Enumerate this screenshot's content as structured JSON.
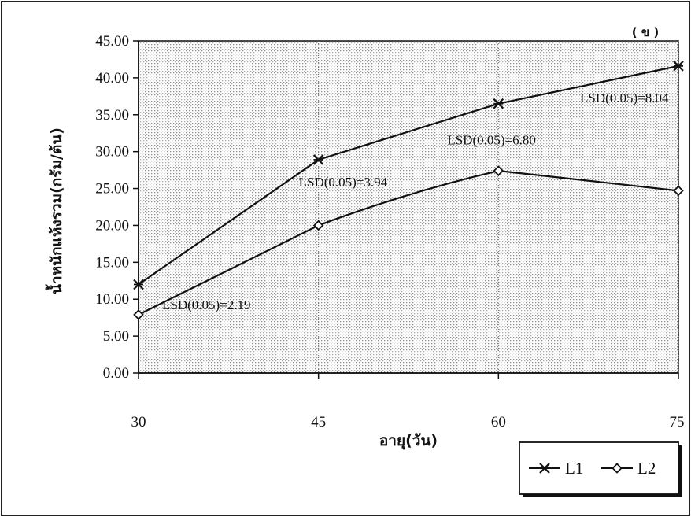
{
  "panel_tag": "( ข )",
  "chart_data": {
    "type": "line",
    "title": "",
    "xlabel": "อายุ(วัน)",
    "ylabel": "น้ำหนักแห้งรวม(กรัม/ต้น)",
    "x": [
      30,
      45,
      60,
      75
    ],
    "x_tick_labels": [
      "30",
      "45",
      "60",
      "75"
    ],
    "ylim": [
      0,
      45
    ],
    "y_ticks": [
      0,
      5,
      10,
      15,
      20,
      25,
      30,
      35,
      40,
      45
    ],
    "y_tick_labels": [
      "0.00",
      "5.00",
      "10.00",
      "15.00",
      "20.00",
      "25.00",
      "30.00",
      "35.00",
      "40.00",
      "45.00"
    ],
    "grid": "dotted",
    "legend_position": "bottom-right",
    "series": [
      {
        "name": "L1",
        "marker": "x",
        "values": [
          12.0,
          28.9,
          36.5,
          41.6
        ]
      },
      {
        "name": "L2",
        "marker": "diamond",
        "values": [
          7.9,
          20.0,
          27.4,
          24.7
        ]
      }
    ],
    "annotations": [
      {
        "text": "LSD(0.05)=2.19",
        "x": 30,
        "y": 9.3
      },
      {
        "text": "LSD(0.05)=3.94",
        "x": 45,
        "y": 25.9
      },
      {
        "text": "LSD(0.05)=6.80",
        "x": 60,
        "y": 31.6
      },
      {
        "text": "LSD(0.05)=8.04",
        "x": 75,
        "y": 37.3
      }
    ]
  }
}
